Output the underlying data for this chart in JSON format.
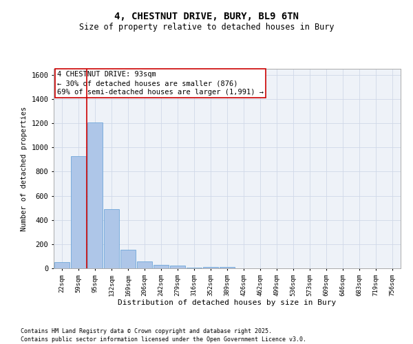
{
  "title1": "4, CHESTNUT DRIVE, BURY, BL9 6TN",
  "title2": "Size of property relative to detached houses in Bury",
  "xlabel": "Distribution of detached houses by size in Bury",
  "ylabel": "Number of detached properties",
  "bin_labels": [
    "22sqm",
    "59sqm",
    "95sqm",
    "132sqm",
    "169sqm",
    "206sqm",
    "242sqm",
    "279sqm",
    "316sqm",
    "352sqm",
    "389sqm",
    "426sqm",
    "462sqm",
    "499sqm",
    "536sqm",
    "573sqm",
    "609sqm",
    "646sqm",
    "683sqm",
    "719sqm",
    "756sqm"
  ],
  "bar_heights": [
    50,
    930,
    1205,
    490,
    155,
    55,
    30,
    20,
    5,
    10,
    10,
    0,
    0,
    0,
    0,
    0,
    0,
    0,
    0,
    0,
    0
  ],
  "bar_color": "#aec6e8",
  "bar_edgecolor": "#5b9bd5",
  "property_line_color": "#cc0000",
  "annotation_text": "4 CHESTNUT DRIVE: 93sqm\n← 30% of detached houses are smaller (876)\n69% of semi-detached houses are larger (1,991) →",
  "annotation_box_color": "#cc0000",
  "ylim": [
    0,
    1650
  ],
  "yticks": [
    0,
    200,
    400,
    600,
    800,
    1000,
    1200,
    1400,
    1600
  ],
  "grid_color": "#d0d8e8",
  "bg_color": "#eef2f8",
  "footer1": "Contains HM Land Registry data © Crown copyright and database right 2025.",
  "footer2": "Contains public sector information licensed under the Open Government Licence v3.0."
}
